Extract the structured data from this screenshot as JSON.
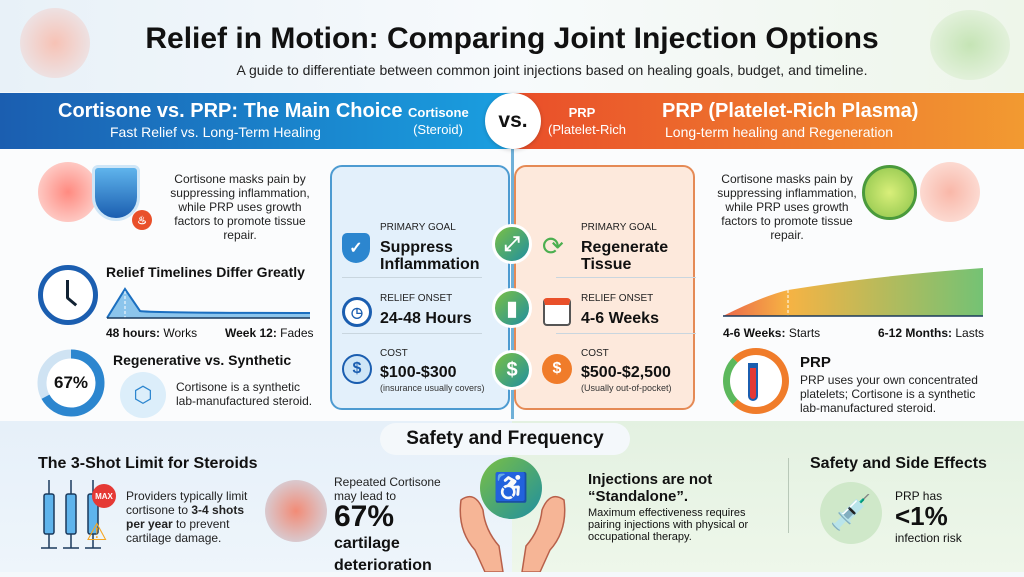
{
  "header": {
    "title": "Relief in Motion: Comparing Joint Injection Options",
    "subtitle": "A guide to differentiate between common joint injections based on healing goals, budget, and timeline."
  },
  "banner": {
    "left": {
      "title": "Cortisone vs. PRP: The Main Choice",
      "subtitle": "Fast Relief vs. Long-Term Healing",
      "tag": "Cortisone",
      "tag_sub": "(Steroid)"
    },
    "vs": "vs.",
    "right": {
      "tag": "PRP",
      "tag_sub": "(Platelet-Rich",
      "title": "PRP (Platelet-Rich Plasma)",
      "subtitle": "Long-term healing and Regeneration"
    }
  },
  "left_col": {
    "intro": "Cortisone masks pain by suppressing inflammation, while PRP uses growth factors to promote tissue repair.",
    "timeline": {
      "title": "Relief Timelines Differ Greatly",
      "start_b": "48 hours:",
      "start": "Works",
      "end_b": "Week 12:",
      "end": "Fades"
    },
    "regen": {
      "title": "Regenerative vs. Synthetic",
      "percent": "67%",
      "percent_value": 67,
      "text": "Cortisone is a synthetic lab-manufactured steroid."
    }
  },
  "right_col": {
    "intro": "Cortisone masks pain by suppressing inflammation, while PRP uses growth factors to promote tissue repair.",
    "timeline": {
      "start_b": "4-6 Weeks:",
      "start": "Starts",
      "end_b": "6-12 Months:",
      "end": "Lasts"
    },
    "prp": {
      "title": "PRP",
      "text": "PRP uses your own concentrated platelets; Cortisone is a synthetic lab-manufactured steroid."
    }
  },
  "cards": {
    "cortisone": [
      {
        "label": "PRIMARY GOAL",
        "value": "Suppress Inflammation",
        "icon": "shield-check-icon"
      },
      {
        "label": "RELIEF ONSET",
        "value": "24-48 Hours",
        "icon": "clock-icon"
      },
      {
        "label": "COST",
        "value": "$100-$300",
        "note": "(insurance usually covers)",
        "icon": "dollar-icon"
      }
    ],
    "prp": [
      {
        "label": "PRIMARY GOAL",
        "value": "Regenerate Tissue",
        "icon": "refresh-icon"
      },
      {
        "label": "RELIEF ONSET",
        "value": "4-6 Weeks",
        "icon": "calendar-icon"
      },
      {
        "label": "COST",
        "value": "$500-$2,500",
        "note": "(Usually out-of-pocket)",
        "icon": "dollar-icon"
      }
    ]
  },
  "bottom": {
    "section_title": "Safety and Frequency",
    "limit": {
      "title": "The 3-Shot Limit for Steroids",
      "badge": "MAX",
      "text_a": "Providers typically limit cortisone to ",
      "text_b": "3-4 shots per year",
      "text_c": " to prevent cartilage damage."
    },
    "cartilage": {
      "text": "Repeated Cortisone may lead to",
      "percent": "67%",
      "text_b": "cartilage deterioration"
    },
    "standalone": {
      "title": "Injections are not “Standalone”.",
      "text": "Maximum effectiveness requires pairing injections with physical or occupational therapy."
    },
    "safety": {
      "title": "Safety and Side Effects",
      "pre": "PRP has",
      "value": "<1%",
      "post": "infection risk"
    }
  },
  "colors": {
    "blue": "#1b5eb0",
    "orange": "#e94e2a",
    "green": "#4caf50"
  }
}
